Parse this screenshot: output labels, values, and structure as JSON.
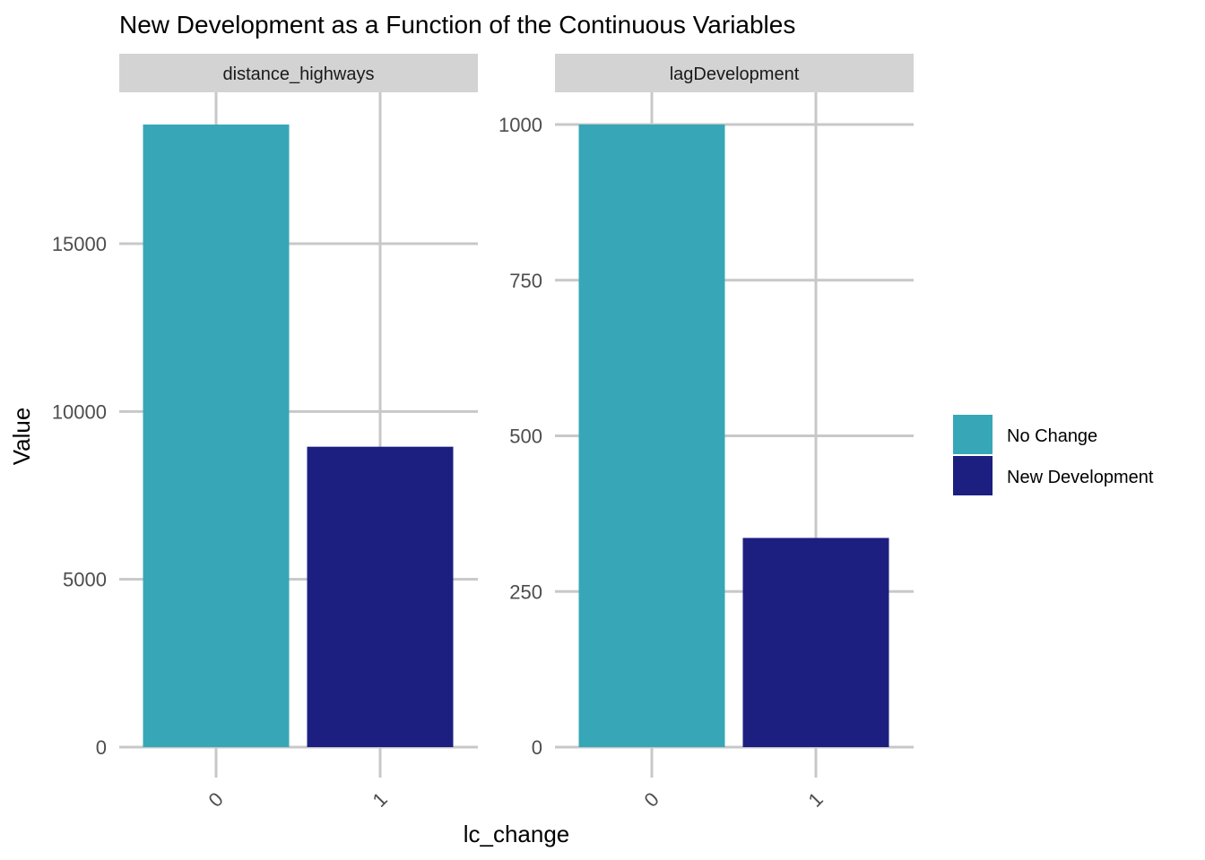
{
  "chart_data": {
    "type": "bar",
    "title": "New Development as a Function of the Continuous Variables",
    "xlabel": "lc_change",
    "ylabel": "Value",
    "categories": [
      "0",
      "1"
    ],
    "grid": true,
    "legend_position": "right",
    "legend": [
      {
        "label": "No Change",
        "color": "#37A7B8"
      },
      {
        "label": "New Development",
        "color": "#1C1F80"
      }
    ],
    "facets": [
      {
        "name": "distance_highways",
        "values": [
          18550,
          8950
        ],
        "ylim": [
          0,
          18550
        ],
        "yticks": [
          0,
          5000,
          10000,
          15000
        ],
        "ytick_labels": [
          "0",
          "5000",
          "10000",
          "15000"
        ]
      },
      {
        "name": "lagDevelopment",
        "values": [
          1000,
          336
        ],
        "ylim": [
          0,
          1000
        ],
        "yticks": [
          0,
          250,
          500,
          750,
          1000
        ],
        "ytick_labels": [
          "0",
          "250",
          "500",
          "750",
          "1000"
        ]
      }
    ]
  }
}
